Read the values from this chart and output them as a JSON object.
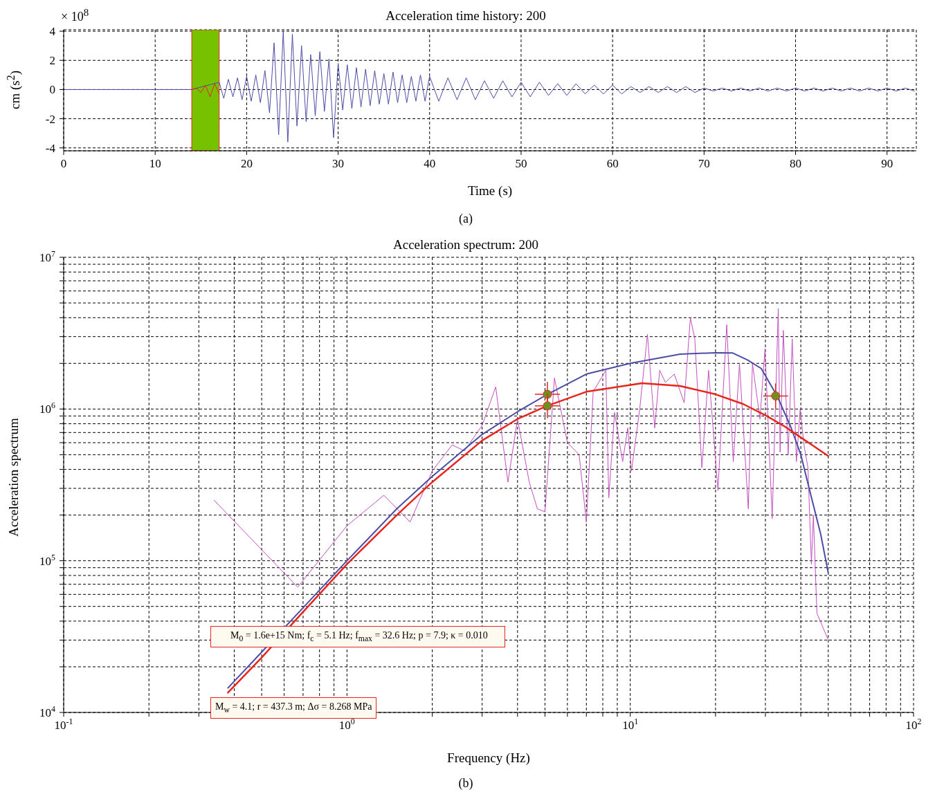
{
  "chart_data": [
    {
      "type": "line",
      "title": "Acceleration time history: 200",
      "xlabel": "Time (s)",
      "ylabel": "cm (s$^{2}$)",
      "annotations": [
        "× 10$^{8}$",
        "(a)"
      ],
      "xlim": [
        0,
        93.2
      ],
      "ylim": [
        -4.2,
        4.1
      ],
      "xticks": [
        0,
        10,
        20,
        30,
        40,
        50,
        60,
        70,
        80,
        90
      ],
      "yticks": [
        -4,
        -2,
        0,
        2,
        4
      ],
      "grid": true,
      "bands": [
        {
          "axis": "x",
          "from": 14,
          "to": 17,
          "color": "#77c200"
        }
      ],
      "series": [
        {
          "color": "#4a4ca6",
          "x": [
            0,
            14,
            17,
            17.5,
            18,
            18.5,
            19,
            19.5,
            20,
            20.5,
            21,
            21.5,
            22,
            22.5,
            23,
            23.5,
            24,
            24.5,
            25,
            25.5,
            26,
            26.5,
            27,
            27.5,
            28,
            28.5,
            29,
            29.5,
            30,
            30.5,
            31,
            31.5,
            32,
            32.5,
            33,
            33.5,
            34,
            34.5,
            35,
            35.5,
            36,
            36.5,
            37,
            37.5,
            38,
            38.5,
            39,
            39.5,
            40,
            41,
            42,
            43,
            44,
            45,
            46,
            47,
            48,
            49,
            50,
            51,
            52,
            53,
            54,
            55,
            56,
            57,
            58,
            59,
            60,
            61,
            62,
            63,
            64,
            65,
            66,
            67,
            68,
            69,
            70,
            71,
            72,
            73,
            74,
            75,
            76,
            77,
            78,
            79,
            80,
            81,
            82,
            83,
            84,
            85,
            86,
            87,
            88,
            89,
            90,
            91,
            92,
            93
          ],
          "values": [
            0,
            0,
            0.5,
            -0.6,
            0.7,
            -0.5,
            0.8,
            -0.7,
            0.9,
            -0.8,
            1.0,
            -0.9,
            1.3,
            -1.6,
            3.2,
            -3.1,
            4.0,
            -3.6,
            3.8,
            -2.5,
            3.0,
            -2.2,
            2.4,
            -1.8,
            2.6,
            -1.5,
            2.1,
            -3.3,
            1.8,
            -1.4,
            1.7,
            -1.3,
            1.5,
            -1.2,
            1.4,
            -1.1,
            1.3,
            -1.0,
            1.1,
            -1.0,
            1.2,
            -0.9,
            1.0,
            -0.9,
            0.9,
            -0.8,
            1.0,
            -0.8,
            0.9,
            -0.8,
            0.8,
            -0.7,
            0.8,
            -0.7,
            0.6,
            -0.6,
            0.6,
            -0.5,
            0.5,
            -0.5,
            0.5,
            -0.4,
            0.4,
            -0.4,
            0.4,
            -0.3,
            0.3,
            -0.3,
            0.3,
            -0.3,
            0.2,
            -0.2,
            0.2,
            -0.2,
            0.2,
            -0.2,
            0.2,
            -0.2,
            0.1,
            -0.1,
            0.1,
            -0.1,
            0.1,
            -0.1,
            0.1,
            -0.1,
            0.1,
            -0.1,
            0.1,
            -0.1,
            0.1,
            -0.1,
            0.1,
            -0.1,
            0.1,
            -0.1,
            0.1,
            -0.1,
            0.1,
            -0.1,
            0.1,
            -0.1
          ]
        },
        {
          "color": "#e8251c",
          "x": [
            14,
            14.5,
            15,
            15.5,
            16,
            16.5,
            17
          ],
          "values": [
            0,
            0.1,
            -0.2,
            0.3,
            -0.5,
            0.4,
            -0.3
          ]
        }
      ]
    },
    {
      "type": "line",
      "title": "Acceleration spectrum: 200",
      "xlabel": "Frequency (Hz)",
      "ylabel": "Acceleration spectrum",
      "annotations": [
        "M$_{0}$ = 1.6e+15 Nm; f$_{c}$ = 5.1 Hz; f$_{max}$ = 32.6 Hz; p = 7.9; κ = 0.010",
        "M$_{w}$ = 4.1; r = 437.3 m; Δσ = 8.268 MPa",
        "(b)"
      ],
      "log": "xy",
      "xlim": [
        0.1,
        100
      ],
      "ylim": [
        10000,
        10000000
      ],
      "grid": true,
      "xticks": [
        {
          "value": 0.1,
          "label": "10$^{-1}$"
        },
        {
          "value": 0.2,
          "label": null
        },
        {
          "value": 0.3,
          "label": null
        },
        {
          "value": 0.4,
          "label": null
        },
        {
          "value": 0.5,
          "label": null
        },
        {
          "value": 0.6,
          "label": null
        },
        {
          "value": 0.7,
          "label": null
        },
        {
          "value": 0.8,
          "label": null
        },
        {
          "value": 0.9,
          "label": null
        },
        {
          "value": 1,
          "label": "10$^{0}$"
        },
        {
          "value": 2,
          "label": null
        },
        {
          "value": 3,
          "label": null
        },
        {
          "value": 4,
          "label": null
        },
        {
          "value": 5,
          "label": null
        },
        {
          "value": 6,
          "label": null
        },
        {
          "value": 7,
          "label": null
        },
        {
          "value": 8,
          "label": null
        },
        {
          "value": 9,
          "label": null
        },
        {
          "value": 10,
          "label": "10$^{1}$"
        },
        {
          "value": 20,
          "label": null
        },
        {
          "value": 30,
          "label": null
        },
        {
          "value": 40,
          "label": null
        },
        {
          "value": 50,
          "label": null
        },
        {
          "value": 60,
          "label": null
        },
        {
          "value": 70,
          "label": null
        },
        {
          "value": 80,
          "label": null
        },
        {
          "value": 90,
          "label": null
        },
        {
          "value": 100,
          "label": "10$^{2}$"
        }
      ],
      "yticks": [
        {
          "value": 10000,
          "label": "10$^{4}$"
        },
        {
          "value": 20000,
          "label": null
        },
        {
          "value": 30000,
          "label": null
        },
        {
          "value": 40000,
          "label": null
        },
        {
          "value": 50000,
          "label": null
        },
        {
          "value": 60000,
          "label": null
        },
        {
          "value": 70000,
          "label": null
        },
        {
          "value": 80000,
          "label": null
        },
        {
          "value": 90000,
          "label": null
        },
        {
          "value": 100000,
          "label": "10$^{5}$"
        },
        {
          "value": 200000,
          "label": null
        },
        {
          "value": 300000,
          "label": null
        },
        {
          "value": 400000,
          "label": null
        },
        {
          "value": 500000,
          "label": null
        },
        {
          "value": 600000,
          "label": null
        },
        {
          "value": 700000,
          "label": null
        },
        {
          "value": 800000,
          "label": null
        },
        {
          "value": 900000,
          "label": null
        },
        {
          "value": 1000000,
          "label": "10$^{6}$"
        },
        {
          "value": 2000000,
          "label": null
        },
        {
          "value": 3000000,
          "label": null
        },
        {
          "value": 4000000,
          "label": null
        },
        {
          "value": 5000000,
          "label": null
        },
        {
          "value": 6000000,
          "label": null
        },
        {
          "value": 7000000,
          "label": null
        },
        {
          "value": 8000000,
          "label": null
        },
        {
          "value": 9000000,
          "label": null
        },
        {
          "value": 10000000,
          "label": "10$^{7}$"
        }
      ],
      "series": [
        {
          "color": "#c24fc0",
          "x": [
            0.34,
            0.67,
            1.0,
            1.35,
            1.67,
            2.0,
            2.35,
            2.6,
            3.0,
            3.35,
            3.7,
            4.0,
            4.4,
            4.7,
            5.0,
            5.4,
            6.0,
            6.6,
            7.0,
            7.4,
            8.2,
            8.4,
            8.8,
            9.4,
            9.8,
            10.1,
            10.8,
            11.5,
            12.2,
            12.7,
            13.3,
            14.3,
            15.5,
            16.3,
            16.9,
            17.9,
            18.9,
            20.4,
            21.9,
            23.1,
            24.3,
            26.1,
            27,
            28.7,
            29.9,
            31.7,
            33.3,
            33.8,
            34.7,
            36.1,
            37.3,
            38.6,
            39.8,
            41.1,
            42.4,
            43.6,
            44.3,
            45.6,
            47.4,
            50
          ],
          "values": [
            250000,
            67000,
            170000,
            270000,
            180000,
            390000,
            580000,
            530000,
            780000,
            1400000,
            330000,
            860000,
            330000,
            220000,
            210000,
            1600000,
            600000,
            500000,
            180000,
            1300000,
            1800000,
            260000,
            950000,
            450000,
            750000,
            390000,
            1000000,
            3100000,
            750000,
            1800000,
            1500000,
            1700000,
            1100000,
            4000000,
            2900000,
            410000,
            1800000,
            290000,
            3600000,
            450000,
            2000000,
            220000,
            2000000,
            860000,
            2500000,
            190000,
            4600000,
            520000,
            3300000,
            500000,
            2900000,
            450000,
            1000000,
            570000,
            410000,
            95000,
            200000,
            45000,
            38000,
            30000
          ]
        },
        {
          "color": "#4a4ca6",
          "x": [
            0.38,
            0.5,
            0.7,
            1,
            1.5,
            2,
            3,
            4,
            5.1,
            7,
            10,
            15,
            20,
            23,
            26,
            29,
            33,
            37,
            40,
            43,
            47,
            50
          ],
          "values": [
            14500,
            25000,
            49000,
            100000,
            220000,
            360000,
            680000,
            960000,
            1250000,
            1700000,
            2000000,
            2300000,
            2350000,
            2340000,
            2100000,
            1850000,
            1220000,
            750000,
            500000,
            290000,
            150000,
            83000
          ]
        },
        {
          "color": "#e8251c",
          "x": [
            0.38,
            0.5,
            0.7,
            1,
            1.5,
            2,
            3,
            4,
            5.1,
            7,
            11,
            15,
            20,
            25,
            30,
            35,
            40,
            45,
            50
          ],
          "values": [
            13500,
            23000,
            46000,
            95000,
            200000,
            330000,
            620000,
            860000,
            1050000,
            1300000,
            1480000,
            1420000,
            1250000,
            1080000,
            910000,
            770000,
            650000,
            560000,
            490000
          ]
        },
        {
          "type": "scatter",
          "color": "#6f8f1f",
          "marker": "circle",
          "x": [
            5.1,
            5.1,
            32.6
          ],
          "values": [
            1250000,
            1050000,
            1220000
          ]
        }
      ]
    }
  ]
}
